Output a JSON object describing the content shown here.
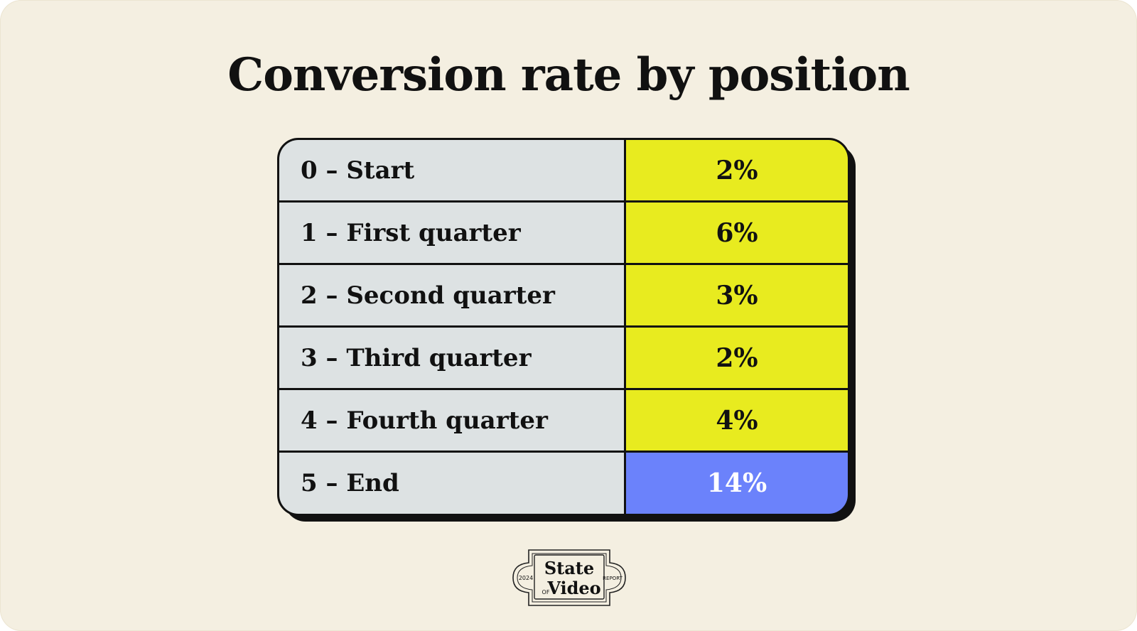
{
  "title": "Conversion rate by position",
  "chart_data": {
    "type": "table",
    "title": "Conversion rate by position",
    "rows": [
      {
        "label": "0 – Start",
        "value": "2%"
      },
      {
        "label": "1 – First quarter",
        "value": "6%"
      },
      {
        "label": "2 – Second quarter",
        "value": "3%"
      },
      {
        "label": "3 – Third quarter",
        "value": "2%"
      },
      {
        "label": "4 – Fourth quarter",
        "value": "4%"
      },
      {
        "label": "5 – End",
        "value": "14%"
      }
    ],
    "values": [
      2,
      6,
      3,
      2,
      4,
      14
    ],
    "colors": {
      "label_bg": "#dde2e3",
      "value_bg": "#e8eb1f",
      "highlight_bg": "#6b82fb",
      "highlight_text": "#ffffff",
      "text": "#111111"
    },
    "highlight_index": 5
  },
  "logo": {
    "line1": "State",
    "line2": "Video",
    "of": "OF",
    "year": "2024",
    "report": "REPORT"
  }
}
